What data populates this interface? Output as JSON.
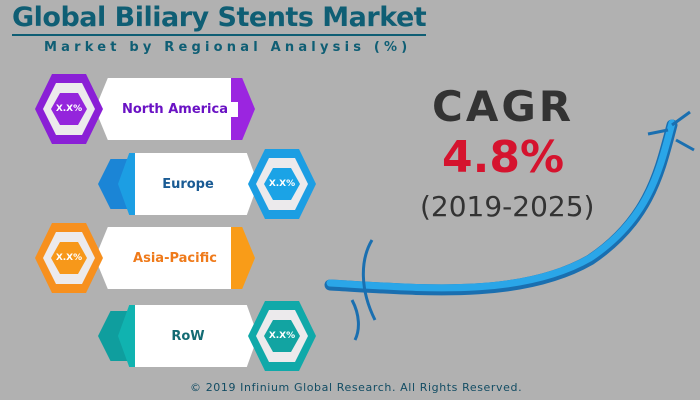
{
  "title": "Global Biliary Stents Market",
  "subtitle": "Market by Regional Analysis (%)",
  "regions": [
    {
      "label": "North America",
      "value": "X.X%",
      "color": "#8a1fd6",
      "text_color": "#6a12c4"
    },
    {
      "label": "Europe",
      "value": "X.X%",
      "color": "#1c9ee3",
      "text_color": "#1a5b94"
    },
    {
      "label": "Asia-Pacific",
      "value": "X.X%",
      "color": "#f7901e",
      "text_color": "#ef7a1a"
    },
    {
      "label": "RoW",
      "value": "X.X%",
      "color": "#10a9a9",
      "text_color": "#136b73"
    }
  ],
  "cagr": {
    "label": "CAGR",
    "value": "4.8%",
    "period": "(2019-2025)"
  },
  "footer": "© 2019 Infinium Global Research. All Rights Reserved."
}
